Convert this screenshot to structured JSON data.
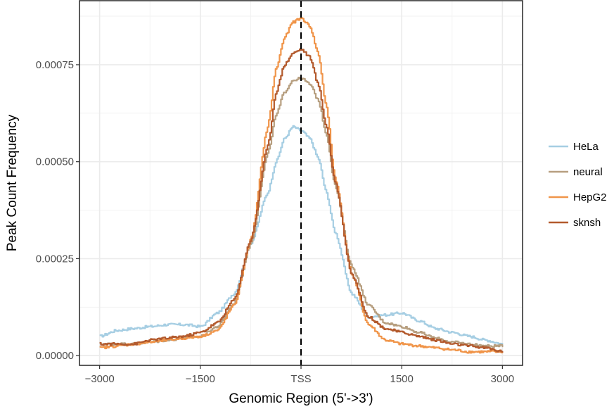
{
  "chart_data": {
    "type": "line",
    "xlabel": "Genomic Region (5'->3')",
    "ylabel": "Peak Count Frequency",
    "xlim": [
      -3300,
      3300
    ],
    "ylim": [
      -2.5e-05,
      0.000915
    ],
    "x_ticks": [
      {
        "value": -3000,
        "label": "−3000"
      },
      {
        "value": -1500,
        "label": "−1500"
      },
      {
        "value": 0,
        "label": "TSS"
      },
      {
        "value": 1500,
        "label": "1500"
      },
      {
        "value": 3000,
        "label": "3000"
      }
    ],
    "y_ticks": [
      {
        "value": 0.0,
        "label": "0.00000"
      },
      {
        "value": 0.00025,
        "label": "0.00025"
      },
      {
        "value": 0.0005,
        "label": "0.00050"
      },
      {
        "value": 0.00075,
        "label": "0.00075"
      }
    ],
    "vline": {
      "x": 0,
      "style": "dashed",
      "color": "#000000"
    },
    "grid": true,
    "legend_position": "right",
    "x": [
      -3000,
      -2750,
      -2500,
      -2250,
      -2000,
      -1750,
      -1500,
      -1250,
      -1000,
      -750,
      -500,
      -375,
      -250,
      -125,
      0,
      125,
      250,
      375,
      500,
      750,
      1000,
      1250,
      1500,
      1750,
      2000,
      2250,
      2500,
      2750,
      3000
    ],
    "series": [
      {
        "name": "HeLa",
        "color": "#a6cee3",
        "values": [
          5e-05,
          6.5e-05,
          7e-05,
          7.5e-05,
          8e-05,
          8e-05,
          7.5e-05,
          0.00011,
          0.00016,
          0.00029,
          0.00042,
          0.0005,
          0.00056,
          0.00059,
          0.00058,
          0.00056,
          0.00051,
          0.00042,
          0.00032,
          0.00016,
          0.0001,
          0.000105,
          0.00011,
          9e-05,
          7e-05,
          6e-05,
          5e-05,
          4e-05,
          3e-05
        ]
      },
      {
        "name": "neural",
        "color": "#b79f80",
        "values": [
          3e-05,
          3e-05,
          3e-05,
          3.5e-05,
          4e-05,
          4.5e-05,
          5e-05,
          7.5e-05,
          0.000135,
          0.00029,
          0.00052,
          0.00062,
          0.00068,
          0.00071,
          0.000715,
          0.0007,
          0.00066,
          0.00057,
          0.00044,
          0.00023,
          0.00013,
          8.5e-05,
          7.5e-05,
          6e-05,
          4.5e-05,
          3.5e-05,
          3e-05,
          2.5e-05,
          2.5e-05
        ]
      },
      {
        "name": "HepG2",
        "color": "#f0954a",
        "values": [
          2e-05,
          2.5e-05,
          3e-05,
          3.5e-05,
          4e-05,
          4.5e-05,
          5e-05,
          6.5e-05,
          0.00013,
          0.0003,
          0.00059,
          0.00074,
          0.00082,
          0.00086,
          0.00087,
          0.00085,
          0.00078,
          0.00064,
          0.00046,
          0.00021,
          8e-05,
          4e-05,
          3e-05,
          2.5e-05,
          2e-05,
          1.5e-05,
          1e-05,
          1e-05,
          1e-05
        ]
      },
      {
        "name": "sknsh",
        "color": "#b35a2d",
        "values": [
          3e-05,
          3e-05,
          3e-05,
          4e-05,
          4.5e-05,
          5e-05,
          6e-05,
          8.5e-05,
          0.000145,
          0.0003,
          0.00054,
          0.00068,
          0.00075,
          0.00078,
          0.00079,
          0.00077,
          0.0007,
          0.00059,
          0.00045,
          0.00021,
          0.0001,
          7e-05,
          6e-05,
          5e-05,
          4e-05,
          3e-05,
          2.5e-05,
          2e-05,
          1e-05
        ]
      }
    ]
  }
}
